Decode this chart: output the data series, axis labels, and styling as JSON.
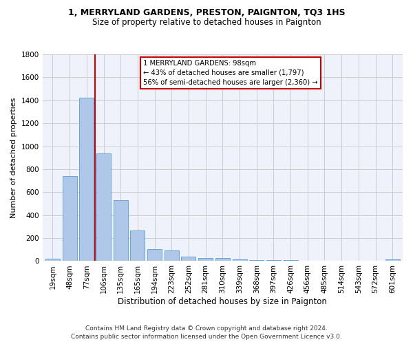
{
  "title1": "1, MERRYLAND GARDENS, PRESTON, PAIGNTON, TQ3 1HS",
  "title2": "Size of property relative to detached houses in Paignton",
  "xlabel": "Distribution of detached houses by size in Paignton",
  "ylabel": "Number of detached properties",
  "categories": [
    "19sqm",
    "48sqm",
    "77sqm",
    "106sqm",
    "135sqm",
    "165sqm",
    "194sqm",
    "223sqm",
    "252sqm",
    "281sqm",
    "310sqm",
    "339sqm",
    "368sqm",
    "397sqm",
    "426sqm",
    "456sqm",
    "485sqm",
    "514sqm",
    "543sqm",
    "572sqm",
    "601sqm"
  ],
  "values": [
    22,
    740,
    1420,
    935,
    530,
    265,
    105,
    90,
    38,
    28,
    28,
    12,
    8,
    8,
    8,
    3,
    3,
    3,
    3,
    3,
    15
  ],
  "bar_color": "#aec6e8",
  "bar_edge_color": "#5b9bd5",
  "grid_color": "#cccccc",
  "vline_x": 2.5,
  "vline_color": "#cc0000",
  "annotation_line1": "1 MERRYLAND GARDENS: 98sqm",
  "annotation_line2": "← 43% of detached houses are smaller (1,797)",
  "annotation_line3": "56% of semi-detached houses are larger (2,360) →",
  "annotation_box_color": "#cc0000",
  "ylim": [
    0,
    1800
  ],
  "yticks": [
    0,
    200,
    400,
    600,
    800,
    1000,
    1200,
    1400,
    1600,
    1800
  ],
  "background_color": "#eef2fb",
  "footer_line1": "Contains HM Land Registry data © Crown copyright and database right 2024.",
  "footer_line2": "Contains public sector information licensed under the Open Government Licence v3.0.",
  "title1_fontsize": 9,
  "title2_fontsize": 8.5,
  "ylabel_fontsize": 8,
  "xlabel_fontsize": 8.5,
  "tick_fontsize": 7.5,
  "footer_fontsize": 6.5
}
